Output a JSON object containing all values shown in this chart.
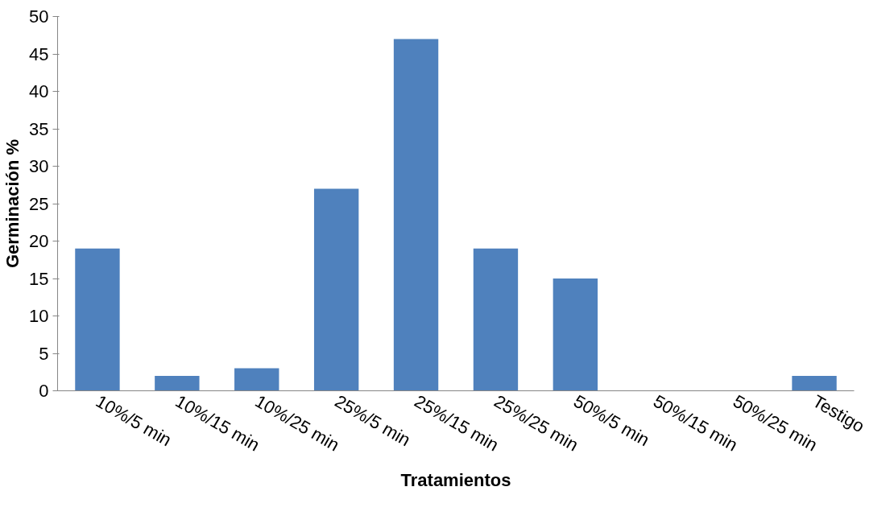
{
  "chart_data": {
    "type": "bar",
    "xlabel": "Tratamientos",
    "ylabel": "Germinación %",
    "categories": [
      "10%/5 min",
      "10%/15 min",
      "10%/25 min",
      "25%/5 min",
      "25%/15 min",
      "25%/25 min",
      "50%/5 min",
      "50%/15 min",
      "50%/25 min",
      "Testigo"
    ],
    "series": [
      {
        "color": "#4f81bd",
        "values": [
          19,
          2,
          3,
          27,
          47,
          19,
          15,
          0,
          0,
          2
        ]
      }
    ],
    "ylim": [
      0,
      50
    ],
    "yticks": [
      0,
      5,
      10,
      15,
      20,
      25,
      30,
      35,
      40,
      45,
      50
    ],
    "grid": false
  }
}
